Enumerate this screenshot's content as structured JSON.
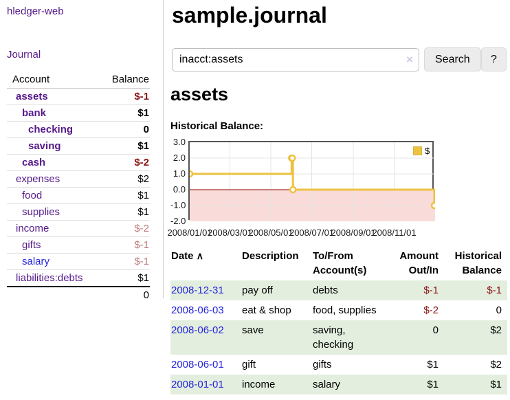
{
  "app": {
    "title": "hledger-web"
  },
  "sidebar": {
    "journal_link": "Journal",
    "account_header": "Account",
    "balance_header": "Balance",
    "accounts": [
      {
        "name": "assets",
        "balance": "$-1",
        "depth": 0,
        "bold": true,
        "link_color": "purple",
        "balance_color": "negative"
      },
      {
        "name": "bank",
        "balance": "$1",
        "depth": 1,
        "bold": true,
        "link_color": "purple",
        "balance_color": "normal"
      },
      {
        "name": "checking",
        "balance": "0",
        "depth": 2,
        "bold": true,
        "link_color": "purple",
        "balance_color": "normal"
      },
      {
        "name": "saving",
        "balance": "$1",
        "depth": 2,
        "bold": true,
        "link_color": "purple",
        "balance_color": "normal"
      },
      {
        "name": "cash",
        "balance": "$-2",
        "depth": 1,
        "bold": true,
        "link_color": "purple",
        "balance_color": "negative"
      },
      {
        "name": "expenses",
        "balance": "$2",
        "depth": 0,
        "bold": false,
        "link_color": "purple",
        "balance_color": "normal"
      },
      {
        "name": "food",
        "balance": "$1",
        "depth": 1,
        "bold": false,
        "link_color": "purple",
        "balance_color": "normal"
      },
      {
        "name": "supplies",
        "balance": "$1",
        "depth": 1,
        "bold": false,
        "link_color": "purple",
        "balance_color": "normal"
      },
      {
        "name": "income",
        "balance": "$-2",
        "depth": 0,
        "bold": false,
        "link_color": "purple",
        "balance_color": "negative-soft"
      },
      {
        "name": "gifts",
        "balance": "$-1",
        "depth": 1,
        "bold": false,
        "link_color": "purple",
        "balance_color": "negative-soft"
      },
      {
        "name": "salary",
        "balance": "$-1",
        "depth": 1,
        "bold": false,
        "link_color": "blue",
        "balance_color": "negative-soft"
      },
      {
        "name": "liabilities:debts",
        "balance": "$1",
        "depth": 0,
        "bold": false,
        "link_color": "purple",
        "balance_color": "normal"
      }
    ],
    "total": "0"
  },
  "header": {
    "title": "sample.journal"
  },
  "search": {
    "value": "inacct:assets",
    "clear_icon": "×",
    "button_label": "Search",
    "help_label": "?"
  },
  "account_page": {
    "title": "assets",
    "chart_label": "Historical Balance:"
  },
  "chart_data": {
    "type": "line",
    "step": true,
    "title": "Historical Balance:",
    "x_min": "2008/01/01",
    "x_max": "2009/01/01",
    "ylim": [
      -2,
      3
    ],
    "y_ticks": [
      {
        "v": 3,
        "label": "3.0"
      },
      {
        "v": 2,
        "label": "2.0"
      },
      {
        "v": 1,
        "label": "1.0"
      },
      {
        "v": 0,
        "label": "0.0"
      },
      {
        "v": -1,
        "label": "-1.0"
      },
      {
        "v": -2,
        "label": "-2.0"
      }
    ],
    "x_ticks": [
      {
        "date": "2008/01/01",
        "label": "2008/01/01"
      },
      {
        "date": "2008/03/01",
        "label": "2008/03/01"
      },
      {
        "date": "2008/05/01",
        "label": "2008/05/01"
      },
      {
        "date": "2008/07/01",
        "label": "2008/07/01"
      },
      {
        "date": "2008/09/01",
        "label": "2008/09/01"
      },
      {
        "date": "2008/11/01",
        "label": "2008/11/01"
      }
    ],
    "series": [
      {
        "name": "$",
        "color": "#edc240",
        "points": [
          [
            "2008/01/01",
            1
          ],
          [
            "2008/06/01",
            2
          ],
          [
            "2008/06/02",
            2
          ],
          [
            "2008/06/03",
            0
          ],
          [
            "2008/12/31",
            -1
          ]
        ]
      }
    ],
    "negative_region_fill": "#f9dcda",
    "zero_line_color": "#8b0000",
    "grid_color": "#e4e4e4",
    "border_color": "#545454",
    "legend_position": "top-right",
    "grid": true
  },
  "register": {
    "sort_icon": "∧",
    "columns": [
      {
        "label": "Date"
      },
      {
        "label": "Description"
      },
      {
        "label": "To/From Account(s)"
      },
      {
        "label": "Amount Out/In"
      },
      {
        "label": "Historical Balance"
      }
    ],
    "rows": [
      {
        "date": "2008-12-31",
        "description": "pay off",
        "accounts": "debts",
        "amount": "$-1",
        "amount_color": "negative",
        "balance": "$-1",
        "balance_color": "negative"
      },
      {
        "date": "2008-06-03",
        "description": "eat & shop",
        "accounts": "food, supplies",
        "amount": "$-2",
        "amount_color": "negative",
        "balance": "0",
        "balance_color": "normal"
      },
      {
        "date": "2008-06-02",
        "description": "save",
        "accounts": "saving, checking",
        "amount": "0",
        "amount_color": "normal",
        "balance": "$2",
        "balance_color": "normal"
      },
      {
        "date": "2008-06-01",
        "description": "gift",
        "accounts": "gifts",
        "amount": "$1",
        "amount_color": "normal",
        "balance": "$2",
        "balance_color": "normal"
      },
      {
        "date": "2008-01-01",
        "description": "income",
        "accounts": "salary",
        "amount": "$1",
        "amount_color": "normal",
        "balance": "$1",
        "balance_color": "normal"
      }
    ]
  }
}
